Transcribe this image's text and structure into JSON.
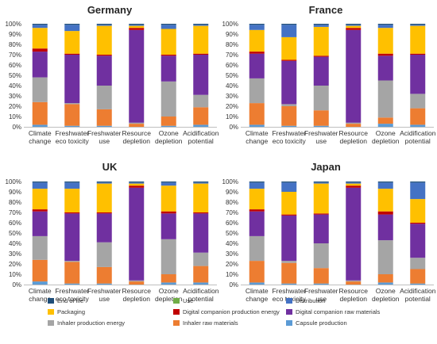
{
  "chart_data": [
    {
      "type": "bar",
      "stacked": true,
      "title": "Germany",
      "categories": [
        "Climate change",
        "Freshwater eco toxicity",
        "Freshwater use",
        "Resource depletion",
        "Ozone depletion",
        "Acidification potential"
      ],
      "ylim": [
        0,
        100
      ],
      "yticks": [
        "0%",
        "10%",
        "20%",
        "30%",
        "40%",
        "50%",
        "60%",
        "70%",
        "80%",
        "90%",
        "100%"
      ],
      "grid": false,
      "series": [
        {
          "name": "Capsule production",
          "values": [
            2,
            1,
            1,
            0,
            1,
            2
          ]
        },
        {
          "name": "Inhaler raw materials",
          "values": [
            22,
            21,
            16,
            3,
            9,
            17
          ]
        },
        {
          "name": "Inhaler production energy",
          "values": [
            24,
            1,
            23,
            1,
            34,
            12
          ]
        },
        {
          "name": "Digital companion raw materials",
          "values": [
            25,
            47,
            29,
            90,
            25,
            39
          ]
        },
        {
          "name": "Digital companion production energy",
          "values": [
            3,
            1,
            1,
            2,
            1,
            1
          ]
        },
        {
          "name": "Use",
          "values": [
            0,
            0,
            0,
            0,
            0,
            0
          ]
        },
        {
          "name": "Packaging",
          "values": [
            20,
            22,
            28,
            2,
            25,
            27
          ]
        },
        {
          "name": "Distribution",
          "values": [
            3,
            6,
            1,
            1,
            4,
            1
          ]
        },
        {
          "name": "End of life",
          "values": [
            1,
            1,
            1,
            1,
            1,
            1
          ]
        }
      ]
    },
    {
      "type": "bar",
      "stacked": true,
      "title": "France",
      "categories": [
        "Climate change",
        "Freshwater eco toxicity",
        "Freshwater use",
        "Resource depletion",
        "Ozone depletion",
        "Acidification potential"
      ],
      "ylim": [
        0,
        100
      ],
      "yticks": [
        "0%",
        "10%",
        "20%",
        "30%",
        "40%",
        "50%",
        "60%",
        "70%",
        "80%",
        "90%",
        "100%"
      ],
      "grid": false,
      "series": [
        {
          "name": "Capsule production",
          "values": [
            2,
            1,
            1,
            0,
            3,
            2
          ]
        },
        {
          "name": "Inhaler raw materials",
          "values": [
            21,
            19,
            15,
            3,
            6,
            16
          ]
        },
        {
          "name": "Inhaler production energy",
          "values": [
            24,
            2,
            24,
            1,
            36,
            14
          ]
        },
        {
          "name": "Digital companion raw materials",
          "values": [
            24,
            42,
            28,
            90,
            24,
            38
          ]
        },
        {
          "name": "Digital companion production energy",
          "values": [
            2,
            1,
            1,
            2,
            2,
            1
          ]
        },
        {
          "name": "Use",
          "values": [
            0,
            0,
            0,
            0,
            0,
            0
          ]
        },
        {
          "name": "Packaging",
          "values": [
            21,
            22,
            28,
            2,
            25,
            27
          ]
        },
        {
          "name": "Distribution",
          "values": [
            5,
            12,
            2,
            1,
            3,
            1
          ]
        },
        {
          "name": "End of life",
          "values": [
            1,
            1,
            1,
            1,
            1,
            1
          ]
        }
      ]
    },
    {
      "type": "bar",
      "stacked": true,
      "title": "UK",
      "categories": [
        "Climate change",
        "Freshwater eco toxicity",
        "Freshwater use",
        "Resource depletion",
        "Ozone depletion",
        "Acidification potential"
      ],
      "ylim": [
        0,
        100
      ],
      "yticks": [
        "0%",
        "10%",
        "20%",
        "30%",
        "40%",
        "50%",
        "60%",
        "70%",
        "80%",
        "90%",
        "100%"
      ],
      "grid": false,
      "series": [
        {
          "name": "Capsule production",
          "values": [
            3,
            1,
            1,
            0,
            2,
            2
          ]
        },
        {
          "name": "Inhaler raw materials",
          "values": [
            21,
            21,
            16,
            3,
            8,
            16
          ]
        },
        {
          "name": "Inhaler production energy",
          "values": [
            23,
            1,
            24,
            1,
            34,
            13
          ]
        },
        {
          "name": "Digital companion raw materials",
          "values": [
            24,
            46,
            28,
            90,
            25,
            38
          ]
        },
        {
          "name": "Digital companion production energy",
          "values": [
            2,
            1,
            1,
            2,
            2,
            1
          ]
        },
        {
          "name": "Use",
          "values": [
            0,
            0,
            0,
            0,
            0,
            0
          ]
        },
        {
          "name": "Packaging",
          "values": [
            20,
            23,
            28,
            2,
            25,
            28
          ]
        },
        {
          "name": "Distribution",
          "values": [
            6,
            6,
            1,
            1,
            3,
            1
          ]
        },
        {
          "name": "End of life",
          "values": [
            1,
            1,
            1,
            1,
            1,
            1
          ]
        }
      ]
    },
    {
      "type": "bar",
      "stacked": true,
      "title": "Japan",
      "categories": [
        "Climate change",
        "Freshwater eco toxicity",
        "Freshwater use",
        "Resource depletion",
        "Ozone depletion",
        "Acidification potential"
      ],
      "ylim": [
        0,
        100
      ],
      "yticks": [
        "0%",
        "10%",
        "20%",
        "30%",
        "40%",
        "50%",
        "60%",
        "70%",
        "80%",
        "90%",
        "100%"
      ],
      "grid": false,
      "series": [
        {
          "name": "Capsule production",
          "values": [
            2,
            1,
            1,
            0,
            2,
            1
          ]
        },
        {
          "name": "Inhaler raw materials",
          "values": [
            21,
            20,
            15,
            3,
            8,
            14
          ]
        },
        {
          "name": "Inhaler production energy",
          "values": [
            24,
            2,
            24,
            1,
            33,
            11
          ]
        },
        {
          "name": "Digital companion raw materials",
          "values": [
            24,
            44,
            28,
            90,
            25,
            33
          ]
        },
        {
          "name": "Digital companion production energy",
          "values": [
            2,
            1,
            1,
            2,
            3,
            1
          ]
        },
        {
          "name": "Use",
          "values": [
            0,
            0,
            0,
            0,
            0,
            0
          ]
        },
        {
          "name": "Packaging",
          "values": [
            20,
            22,
            29,
            2,
            22,
            23
          ]
        },
        {
          "name": "Distribution",
          "values": [
            6,
            9,
            1,
            1,
            6,
            16
          ]
        },
        {
          "name": "End of life",
          "values": [
            1,
            1,
            1,
            1,
            1,
            1
          ]
        }
      ]
    }
  ],
  "legend": {
    "placement": "bottom",
    "items": [
      {
        "name": "End of life",
        "color": "#1F4E79"
      },
      {
        "name": "Use",
        "color": "#70AD47"
      },
      {
        "name": "Distribution",
        "color": "#4472C4"
      },
      {
        "name": "Packaging",
        "color": "#FFC000"
      },
      {
        "name": "Digital companion production energy",
        "color": "#C00000"
      },
      {
        "name": "Digital companion raw materials",
        "color": "#7030A0"
      },
      {
        "name": "Inhaler production energy",
        "color": "#A5A5A5"
      },
      {
        "name": "Inhaler raw materials",
        "color": "#ED7D31"
      },
      {
        "name": "Capsule production",
        "color": "#5B9BD5"
      }
    ]
  }
}
